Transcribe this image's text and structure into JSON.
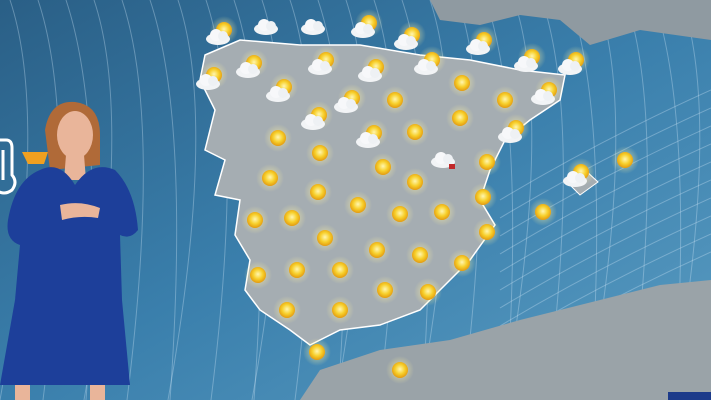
{
  "broadcast": {
    "scene": "weather-forecast",
    "colors": {
      "sea": "#2f6e98",
      "land": "#9aa6ad",
      "sun": "#f4c21c",
      "cloud": "#f2f4f6",
      "dress": "#1d3f9a"
    },
    "thermometer_icon": "thermometer-icon",
    "icons": [
      "sun-cloud",
      "cloud",
      "cloud",
      "sun-cloud",
      "sun-cloud",
      "sun-cloud",
      "sun-cloud",
      "sun-cloud",
      "sun-cloud",
      "sun-cloud",
      "sun-cloud",
      "sun-cloud",
      "sun-cloud",
      "sun-cloud",
      "sun",
      "sun",
      "sun-cloud",
      "sun-cloud",
      "sun-cloud",
      "sun",
      "sun",
      "sun-cloud",
      "sun",
      "sun-cloud",
      "sun",
      "sun",
      "cloud-rain",
      "sun",
      "sun",
      "sun",
      "sun",
      "sun",
      "sun",
      "sun-cloud",
      "sun",
      "sun",
      "sun",
      "sun",
      "sun",
      "sun",
      "sun",
      "sun",
      "sun",
      "sun",
      "sun",
      "sun",
      "sun",
      "sun",
      "sun",
      "sun",
      "sun",
      "sun",
      "sun",
      "sun",
      "sun"
    ]
  }
}
